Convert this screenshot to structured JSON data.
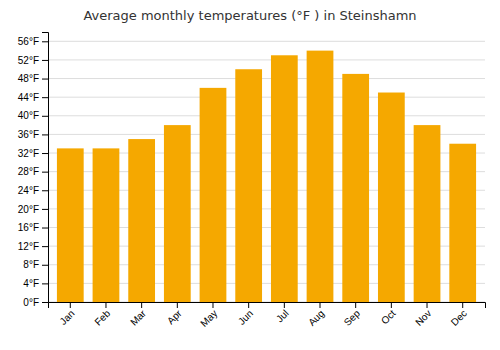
{
  "chart_data": {
    "type": "bar",
    "title": "Average monthly temperatures (°F ) in Steinshamn",
    "categories": [
      "Jan",
      "Feb",
      "Mar",
      "Apr",
      "May",
      "Jun",
      "Jul",
      "Aug",
      "Sep",
      "Oct",
      "Nov",
      "Dec"
    ],
    "values": [
      33,
      33,
      35,
      38,
      46,
      50,
      53,
      54,
      49,
      45,
      38,
      34
    ],
    "color": "#F5A800",
    "ylim": [
      0,
      58
    ],
    "yticks": [
      {
        "value": 0,
        "label": "0°F"
      },
      {
        "value": 4,
        "label": "4°F"
      },
      {
        "value": 8,
        "label": "8°F"
      },
      {
        "value": 12,
        "label": "12°F"
      },
      {
        "value": 16,
        "label": "16°F"
      },
      {
        "value": 20,
        "label": "20°F"
      },
      {
        "value": 24,
        "label": "24°F"
      },
      {
        "value": 28,
        "label": "28°F"
      },
      {
        "value": 32,
        "label": "32°F"
      },
      {
        "value": 36,
        "label": "36°F"
      },
      {
        "value": 40,
        "label": "40°F"
      },
      {
        "value": 44,
        "label": "44°F"
      },
      {
        "value": 48,
        "label": "48°F"
      },
      {
        "value": 52,
        "label": "52°F"
      },
      {
        "value": 56,
        "label": "56°F"
      }
    ],
    "grid": true
  }
}
